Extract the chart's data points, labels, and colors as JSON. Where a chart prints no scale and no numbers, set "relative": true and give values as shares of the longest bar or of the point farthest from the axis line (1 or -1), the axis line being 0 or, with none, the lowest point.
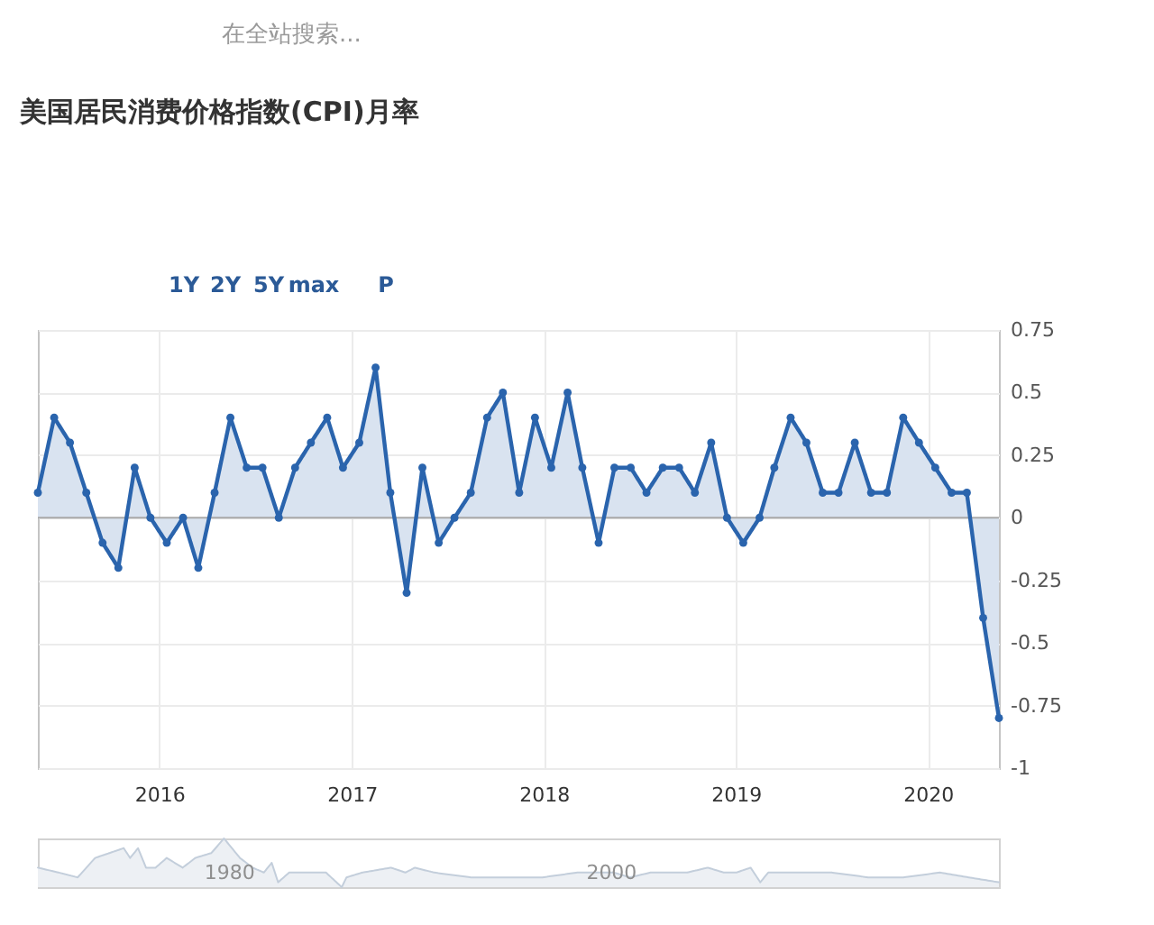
{
  "chart_data": [
    {
      "type": "area",
      "title": "美国居民消费价格指数(CPI)月率",
      "annotations": [
        "在全站搜索...",
        "1Y",
        "2Y",
        "5Y",
        "max",
        "P"
      ],
      "x": [
        "2015-05-15",
        "2015-06-15",
        "2015-07-15",
        "2015-08-15",
        "2015-09-15",
        "2015-10-15",
        "2015-11-15",
        "2015-12-15",
        "2016-01-15",
        "2016-02-15",
        "2016-03-15",
        "2016-04-15",
        "2016-05-15",
        "2016-06-15",
        "2016-07-15",
        "2016-08-15",
        "2016-09-15",
        "2016-10-15",
        "2016-11-15",
        "2016-12-15",
        "2017-01-15",
        "2017-02-15",
        "2017-03-15",
        "2017-04-15",
        "2017-05-15",
        "2017-06-15",
        "2017-07-15",
        "2017-08-15",
        "2017-09-15",
        "2017-10-15",
        "2017-11-15",
        "2017-12-15",
        "2018-01-15",
        "2018-02-15",
        "2018-03-15",
        "2018-04-15",
        "2018-05-15",
        "2018-06-15",
        "2018-07-15",
        "2018-08-15",
        "2018-09-15",
        "2018-10-15",
        "2018-11-15",
        "2018-12-15",
        "2019-01-15",
        "2019-02-15",
        "2019-03-15",
        "2019-04-15",
        "2019-05-15",
        "2019-06-15",
        "2019-07-15",
        "2019-08-15",
        "2019-09-15",
        "2019-10-15",
        "2019-11-15",
        "2019-12-15",
        "2020-01-15",
        "2020-02-15",
        "2020-03-15",
        "2020-04-15",
        "2020-05-15"
      ],
      "series": [
        {
          "color": "#2a64ad",
          "values": [
            0.1,
            0.4,
            0.3,
            0.1,
            -0.1,
            -0.2,
            0.2,
            0,
            -0.1,
            0,
            -0.2,
            0.1,
            0.4,
            0.2,
            0.2,
            0,
            0.2,
            0.3,
            0.4,
            0.2,
            0.3,
            0.6,
            0.1,
            -0.3,
            0.2,
            -0.1,
            0,
            0.1,
            0.4,
            0.5,
            0.1,
            0.4,
            0.2,
            0.5,
            0.2,
            -0.1,
            0.2,
            0.2,
            0.1,
            0.2,
            0.2,
            0.1,
            0.3,
            0,
            -0.1,
            0,
            0.2,
            0.4,
            0.3,
            0.1,
            0.1,
            0.3,
            0.1,
            0.1,
            0.4,
            0.3,
            0.2,
            0.1,
            0.1,
            -0.4,
            -0.8
          ]
        }
      ],
      "xlim": [
        "2015-05-15",
        "2020-05-15"
      ],
      "xticks": [
        "2016",
        "2017",
        "2018",
        "2019",
        "2020"
      ],
      "ylim": [
        -1,
        0.75
      ],
      "yticks": [
        -1,
        -0.75,
        -0.5,
        -0.25,
        0,
        0.25,
        0.5,
        0.75
      ],
      "grid": true,
      "marker": "circle",
      "ref_lines": [
        {
          "axis": "y",
          "value": 0,
          "color": "#a9a9a9"
        }
      ]
    },
    {
      "type": "area",
      "relative": true,
      "tick_labels": "x",
      "x": [
        "1970-01",
        "1971-02",
        "1972-02",
        "1973-01",
        "1973-10",
        "1974-07",
        "1974-11",
        "1975-04",
        "1975-09",
        "1976-03",
        "1976-10",
        "1977-08",
        "1978-04",
        "1979-02",
        "1979-10",
        "1980-08",
        "1981-04",
        "1981-11",
        "1982-04",
        "1982-08",
        "1983-03",
        "1984-01",
        "1985-02",
        "1985-12",
        "1986-03",
        "1987-01",
        "1988-07",
        "1989-04",
        "1989-10",
        "1990-10",
        "1992-09",
        "1994-08",
        "1996-06",
        "1998-04",
        "2000-03",
        "2001-01",
        "2002-02",
        "2004-01",
        "2005-02",
        "2005-12",
        "2006-08",
        "2007-05",
        "2007-11",
        "2008-04",
        "2009-10",
        "2011-08",
        "2013-07",
        "2015-05",
        "2017-04",
        "2018-10",
        "2020-05"
      ],
      "series": [
        {
          "color": "#c3cedb",
          "values": [
            0.4,
            0.3,
            0.2,
            0.6,
            0.7,
            0.8,
            0.6,
            0.8,
            0.4,
            0.4,
            0.6,
            0.4,
            0.6,
            0.7,
            1,
            0.6,
            0.4,
            0.3,
            0.5,
            0.1,
            0.3,
            0.3,
            0.3,
            0,
            0.2,
            0.3,
            0.4,
            0.3,
            0.4,
            0.3,
            0.2,
            0.2,
            0.2,
            0.3,
            0.3,
            0.2,
            0.3,
            0.3,
            0.4,
            0.3,
            0.3,
            0.4,
            0.1,
            0.3,
            0.3,
            0.3,
            0.2,
            0.2,
            0.3,
            0.2,
            0.1
          ]
        }
      ],
      "xlim": [
        "1970-01",
        "2020-05"
      ],
      "xticks": [
        "1980",
        "2000"
      ]
    }
  ]
}
